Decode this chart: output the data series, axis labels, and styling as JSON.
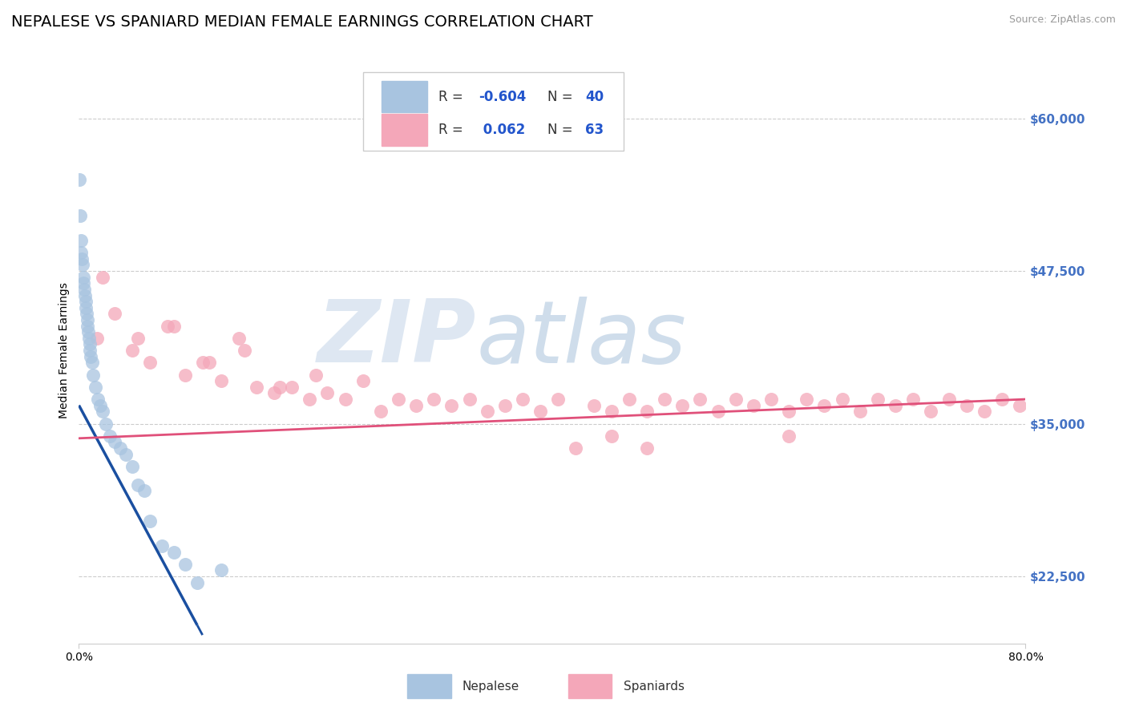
{
  "title": "NEPALESE VS SPANIARD MEDIAN FEMALE EARNINGS CORRELATION CHART",
  "source": "Source: ZipAtlas.com",
  "ylabel": "Median Female Earnings",
  "yticks": [
    22500,
    35000,
    47500,
    60000
  ],
  "ytick_labels": [
    "$22,500",
    "$35,000",
    "$47,500",
    "$60,000"
  ],
  "xlim": [
    0.0,
    80.0
  ],
  "ylim": [
    17000,
    65000
  ],
  "nepalese_color": "#a8c4e0",
  "nepalese_edge_color": "#7ba8d0",
  "spaniard_color": "#f4a7b9",
  "spaniard_edge_color": "#e07090",
  "nepalese_line_color": "#1a4fa0",
  "spaniard_line_color": "#e0507a",
  "background_color": "#ffffff",
  "watermark": "ZIPAtlas",
  "watermark_color": "#c8d8ea",
  "title_fontsize": 14,
  "source_fontsize": 9,
  "nepalese_x": [
    0.05,
    0.1,
    0.15,
    0.2,
    0.25,
    0.3,
    0.35,
    0.4,
    0.45,
    0.5,
    0.55,
    0.6,
    0.65,
    0.7,
    0.75,
    0.8,
    0.85,
    0.9,
    0.95,
    1.0,
    1.1,
    1.2,
    1.4,
    1.6,
    1.8,
    2.0,
    2.3,
    2.6,
    3.0,
    3.5,
    4.0,
    4.5,
    5.0,
    5.5,
    6.0,
    7.0,
    8.0,
    9.0,
    10.0,
    12.0
  ],
  "nepalese_y": [
    55000,
    52000,
    50000,
    49000,
    48500,
    48000,
    47000,
    46500,
    46000,
    45500,
    45000,
    44500,
    44000,
    43500,
    43000,
    42500,
    42000,
    41500,
    41000,
    40500,
    40000,
    39000,
    38000,
    37000,
    36500,
    36000,
    35000,
    34000,
    33500,
    33000,
    32500,
    31500,
    30000,
    29500,
    27000,
    25000,
    24500,
    23500,
    22000,
    23000
  ],
  "spaniard_x": [
    1.5,
    3.0,
    4.5,
    6.0,
    7.5,
    9.0,
    10.5,
    12.0,
    13.5,
    15.0,
    16.5,
    18.0,
    19.5,
    21.0,
    22.5,
    24.0,
    25.5,
    27.0,
    28.5,
    30.0,
    31.5,
    33.0,
    34.5,
    36.0,
    37.5,
    39.0,
    40.5,
    42.0,
    43.5,
    45.0,
    46.5,
    48.0,
    49.5,
    51.0,
    52.5,
    54.0,
    55.5,
    57.0,
    58.5,
    60.0,
    61.5,
    63.0,
    64.5,
    66.0,
    67.5,
    69.0,
    70.5,
    72.0,
    73.5,
    75.0,
    76.5,
    78.0,
    79.5,
    2.0,
    5.0,
    8.0,
    11.0,
    14.0,
    17.0,
    20.0,
    45.0,
    48.0,
    60.0
  ],
  "spaniard_y": [
    42000,
    44000,
    41000,
    40000,
    43000,
    39000,
    40000,
    38500,
    42000,
    38000,
    37500,
    38000,
    37000,
    37500,
    37000,
    38500,
    36000,
    37000,
    36500,
    37000,
    36500,
    37000,
    36000,
    36500,
    37000,
    36000,
    37000,
    33000,
    36500,
    36000,
    37000,
    36000,
    37000,
    36500,
    37000,
    36000,
    37000,
    36500,
    37000,
    36000,
    37000,
    36500,
    37000,
    36000,
    37000,
    36500,
    37000,
    36000,
    37000,
    36500,
    36000,
    37000,
    36500,
    47000,
    42000,
    43000,
    40000,
    41000,
    38000,
    39000,
    34000,
    33000,
    34000
  ],
  "nepalese_r": "-0.604",
  "nepalese_n": "40",
  "spaniard_r": "0.062",
  "spaniard_n": "63"
}
